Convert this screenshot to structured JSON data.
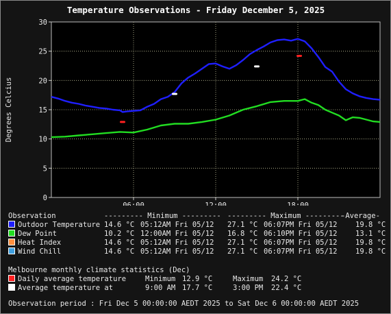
{
  "chart_data": {
    "type": "line",
    "title": "Temperature Observations - Friday December 5, 2025",
    "ylabel": "Degrees Celcius",
    "ylim": [
      0,
      30
    ],
    "y_ticks": [
      0,
      5,
      10,
      15,
      20,
      25,
      30
    ],
    "xlim_hours": [
      0,
      24
    ],
    "x_ticks": [
      {
        "hour": 6,
        "label": "06:00"
      },
      {
        "hour": 12,
        "label": "12:00"
      },
      {
        "hour": 18,
        "label": "18:00"
      }
    ],
    "grid": true,
    "colors": {
      "outdoor": "#1f1fff",
      "dew": "#22dd22",
      "daily_avg": "#ff2020",
      "avg_at": "#ffffff",
      "heat": "#ff9040",
      "chill": "#40a0e0"
    },
    "series": [
      {
        "name": "Outdoor Temperature",
        "x": [
          0,
          0.5,
          1,
          1.5,
          2,
          2.5,
          3,
          3.5,
          4,
          4.5,
          5,
          5.2,
          5.5,
          6,
          6.5,
          7,
          7.5,
          8,
          8.5,
          9,
          9.5,
          10,
          10.5,
          11,
          11.5,
          12,
          12.5,
          13,
          13.5,
          14,
          14.5,
          15,
          15.5,
          16,
          16.5,
          17,
          17.5,
          18,
          18.5,
          19,
          19.5,
          20,
          20.5,
          21,
          21.5,
          22,
          22.5,
          23,
          23.5,
          24
        ],
        "y": [
          17.2,
          16.9,
          16.5,
          16.2,
          16.0,
          15.7,
          15.5,
          15.3,
          15.2,
          15.0,
          14.9,
          14.6,
          14.7,
          14.8,
          14.9,
          15.5,
          16.0,
          16.8,
          17.2,
          18.0,
          19.5,
          20.5,
          21.2,
          22.0,
          22.8,
          22.9,
          22.4,
          22.0,
          22.6,
          23.5,
          24.5,
          25.2,
          25.8,
          26.5,
          26.9,
          27.0,
          26.8,
          27.1,
          26.7,
          25.5,
          24.0,
          22.3,
          21.5,
          19.8,
          18.5,
          17.8,
          17.3,
          17.0,
          16.8,
          16.7
        ]
      },
      {
        "name": "Dew Point",
        "x": [
          0,
          1,
          2,
          3,
          4,
          5,
          6,
          7,
          8,
          9,
          10,
          11,
          12,
          13,
          14,
          15,
          16,
          17,
          18,
          18.5,
          19,
          19.5,
          20,
          20.5,
          21,
          21.5,
          22,
          22.5,
          23,
          23.5,
          24
        ],
        "y": [
          10.3,
          10.4,
          10.6,
          10.8,
          11.0,
          11.2,
          11.1,
          11.6,
          12.3,
          12.6,
          12.6,
          12.9,
          13.3,
          14.0,
          15.0,
          15.6,
          16.3,
          16.5,
          16.5,
          16.8,
          16.2,
          15.8,
          15.0,
          14.5,
          14.0,
          13.2,
          13.7,
          13.6,
          13.3,
          13.0,
          12.9
        ]
      }
    ],
    "markers": [
      {
        "name": "Daily average temperature",
        "points": [
          {
            "hour": 5.2,
            "y": 12.9
          },
          {
            "hour": 18.1,
            "y": 24.2
          }
        ]
      },
      {
        "name": "Average temperature at",
        "points": [
          {
            "hour": 9.0,
            "y": 17.7
          },
          {
            "hour": 15.0,
            "y": 22.4
          }
        ]
      }
    ]
  },
  "table": {
    "header": [
      "Observation",
      "--------- Minimum ---------",
      "--------- Maximum ---------",
      "-Average-"
    ],
    "rows": [
      {
        "name": "Outdoor Temperature",
        "min": "14.6 °C",
        "min_time": "05:12AM Fri 05/12",
        "max": "27.1 °C",
        "max_time": "06:07PM Fri 05/12",
        "avg": "19.8 °C",
        "color": "#1f1fff"
      },
      {
        "name": "Dew Point",
        "min": "10.2 °C",
        "min_time": "12:00AM Fri 05/12",
        "max": "16.8 °C",
        "max_time": "06:10PM Fri 05/12",
        "avg": "13.1 °C",
        "color": "#22dd22"
      },
      {
        "name": "Heat Index",
        "min": "14.6 °C",
        "min_time": "05:12AM Fri 05/12",
        "max": "27.1 °C",
        "max_time": "06:07PM Fri 05/12",
        "avg": "19.8 °C",
        "color": "#ff9040"
      },
      {
        "name": "Wind Chill",
        "min": "14.6 °C",
        "min_time": "05:12AM Fri 05/12",
        "max": "27.1 °C",
        "max_time": "06:07PM Fri 05/12",
        "avg": "19.8 °C",
        "color": "#40a0e0"
      }
    ]
  },
  "climate": {
    "heading": "Melbourne monthly climate statistics (Dec)",
    "daily_label": "Daily average temperature",
    "min_label": "Minimum",
    "min_value": "12.9 °C",
    "max_label": "Maximum",
    "max_value": "24.2 °C",
    "avg_label": "Average temperature at",
    "avg1_time": "9:00 AM",
    "avg1_value": "17.7 °C",
    "avg2_time": "3:00 PM",
    "avg2_value": "22.4 °C"
  },
  "period": "Observation period : Fri Dec 5 00:00:00 AEDT 2025 to Sat Dec 6 00:00:00 AEDT 2025"
}
